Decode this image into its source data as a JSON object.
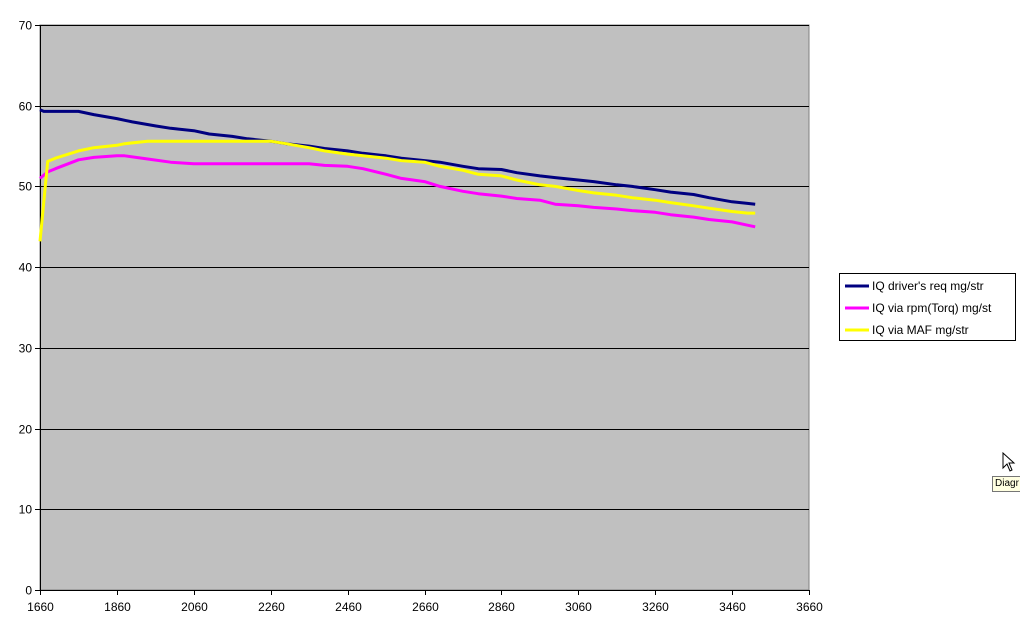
{
  "chart_data": {
    "type": "line",
    "title": "",
    "xlabel": "",
    "ylabel": "",
    "xlim": [
      1660,
      3660
    ],
    "ylim": [
      0,
      70
    ],
    "x_ticks": [
      1660,
      1860,
      2060,
      2260,
      2460,
      2660,
      2860,
      3060,
      3260,
      3460,
      3660
    ],
    "y_ticks": [
      0,
      10,
      20,
      30,
      40,
      50,
      60,
      70
    ],
    "grid": "horizontal",
    "plot_background": "#c0c0c0",
    "legend_position": "right",
    "series": [
      {
        "name": "IQ driver's req mg/str",
        "color": "#000080",
        "x": [
          1660,
          1670,
          1700,
          1760,
          1800,
          1860,
          1900,
          1960,
          2000,
          2060,
          2100,
          2160,
          2200,
          2260,
          2300,
          2360,
          2400,
          2460,
          2500,
          2560,
          2600,
          2660,
          2700,
          2760,
          2800,
          2860,
          2900,
          2960,
          3000,
          3060,
          3100,
          3160,
          3200,
          3260,
          3300,
          3360,
          3400,
          3460,
          3500,
          3520
        ],
        "y": [
          59.5,
          59.3,
          59.3,
          59.3,
          58.9,
          58.4,
          58.0,
          57.5,
          57.2,
          56.9,
          56.5,
          56.2,
          55.9,
          55.6,
          55.3,
          55.0,
          54.7,
          54.4,
          54.1,
          53.8,
          53.5,
          53.2,
          53.0,
          52.5,
          52.2,
          52.1,
          51.7,
          51.3,
          51.1,
          50.8,
          50.6,
          50.2,
          50.0,
          49.6,
          49.3,
          49.0,
          48.6,
          48.1,
          47.9,
          47.8
        ]
      },
      {
        "name": "IQ via rpm(Torq) mg/st",
        "color": "#ff00ff",
        "x": [
          1660,
          1680,
          1700,
          1760,
          1800,
          1860,
          1880,
          1940,
          2000,
          2060,
          2100,
          2160,
          2200,
          2260,
          2300,
          2360,
          2400,
          2460,
          2500,
          2560,
          2600,
          2660,
          2700,
          2760,
          2800,
          2860,
          2900,
          2960,
          3000,
          3060,
          3100,
          3160,
          3200,
          3260,
          3300,
          3360,
          3400,
          3460,
          3500,
          3520
        ],
        "y": [
          51.0,
          51.8,
          52.2,
          53.3,
          53.6,
          53.8,
          53.8,
          53.4,
          53.0,
          52.8,
          52.8,
          52.8,
          52.8,
          52.8,
          52.8,
          52.8,
          52.6,
          52.5,
          52.2,
          51.5,
          51.0,
          50.6,
          50.0,
          49.4,
          49.1,
          48.8,
          48.5,
          48.3,
          47.8,
          47.6,
          47.4,
          47.2,
          47.0,
          46.8,
          46.5,
          46.2,
          45.9,
          45.6,
          45.2,
          45.0
        ]
      },
      {
        "name": "IQ via MAF mg/str",
        "color": "#ffff00",
        "x": [
          1660,
          1680,
          1700,
          1760,
          1800,
          1860,
          1880,
          1940,
          2000,
          2060,
          2100,
          2160,
          2200,
          2260,
          2300,
          2360,
          2400,
          2460,
          2500,
          2560,
          2600,
          2660,
          2700,
          2760,
          2800,
          2860,
          2900,
          2960,
          3000,
          3060,
          3100,
          3160,
          3200,
          3260,
          3300,
          3360,
          3400,
          3460,
          3500,
          3520
        ],
        "y": [
          43.2,
          53.1,
          53.5,
          54.4,
          54.8,
          55.1,
          55.3,
          55.6,
          55.6,
          55.6,
          55.6,
          55.6,
          55.6,
          55.6,
          55.3,
          54.8,
          54.4,
          54.0,
          53.8,
          53.5,
          53.2,
          53.0,
          52.5,
          52.0,
          51.5,
          51.3,
          50.8,
          50.2,
          50.0,
          49.5,
          49.2,
          48.9,
          48.6,
          48.3,
          48.0,
          47.6,
          47.3,
          46.9,
          46.7,
          46.7
        ]
      }
    ]
  },
  "tooltip": {
    "text": "Diagr"
  }
}
